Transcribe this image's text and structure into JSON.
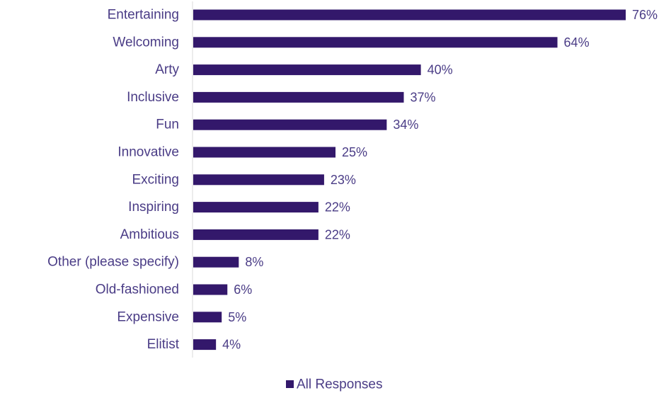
{
  "chart_data": {
    "type": "bar",
    "orientation": "horizontal",
    "categories": [
      "Entertaining",
      "Welcoming",
      "Arty",
      "Inclusive",
      "Fun",
      "Innovative",
      "Exciting",
      "Inspiring",
      "Ambitious",
      "Other (please specify)",
      "Old-fashioned",
      "Expensive",
      "Elitist"
    ],
    "series": [
      {
        "name": "All Responses",
        "values": [
          76,
          64,
          40,
          37,
          34,
          25,
          23,
          22,
          22,
          8,
          6,
          5,
          4
        ]
      }
    ],
    "value_labels": [
      "76%",
      "64%",
      "40%",
      "37%",
      "34%",
      "25%",
      "23%",
      "22%",
      "22%",
      "8%",
      "6%",
      "5%",
      "4%"
    ],
    "xlim": [
      0,
      80
    ],
    "grid": false,
    "legend_position": "bottom",
    "colors": {
      "bar": "#33186b",
      "text": "#4a3c86",
      "axis": "#d9d9d9"
    }
  }
}
